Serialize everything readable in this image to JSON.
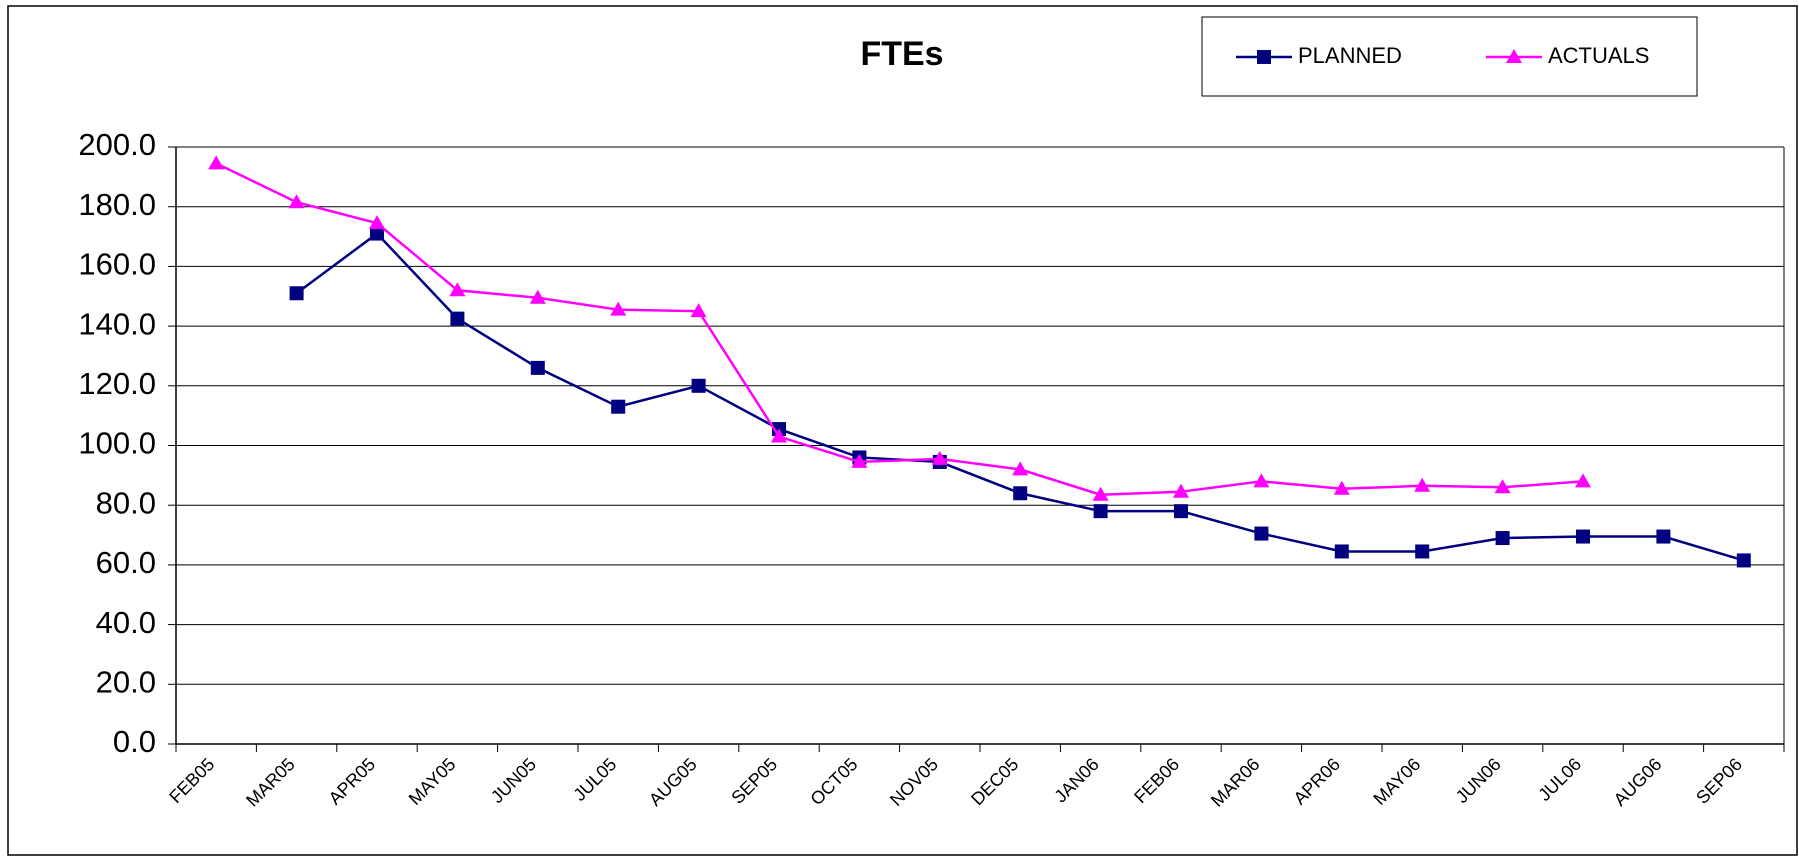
{
  "chart_data": {
    "type": "line",
    "title": "FTEs",
    "categories": [
      "FEB05",
      "MAR05",
      "APR05",
      "MAY05",
      "JUN05",
      "JUL05",
      "AUG05",
      "SEP05",
      "OCT05",
      "NOV05",
      "DEC05",
      "JAN06",
      "FEB06",
      "MAR06",
      "APR06",
      "MAY06",
      "JUN06",
      "JUL06",
      "AUG06",
      "SEP06"
    ],
    "series": [
      {
        "name": "PLANNED",
        "color": "#000080",
        "marker": "square",
        "values": [
          null,
          151,
          171,
          142.5,
          126,
          113,
          120,
          105.5,
          96,
          94.5,
          84,
          78,
          78,
          70.5,
          64.5,
          64.5,
          69,
          69.5,
          69.5,
          61.5
        ]
      },
      {
        "name": "ACTUALS",
        "color": "#ff00ff",
        "marker": "triangle",
        "values": [
          194.5,
          181.5,
          174.5,
          152,
          149.5,
          145.5,
          145,
          103,
          94.5,
          95.5,
          92,
          83.5,
          84.5,
          88,
          85.5,
          86.5,
          86,
          88,
          null,
          null
        ]
      }
    ],
    "ylim": [
      0,
      200
    ],
    "yticks": [
      {
        "value": 0,
        "label": "0.0"
      },
      {
        "value": 20,
        "label": "20.0"
      },
      {
        "value": 40,
        "label": "40.0"
      },
      {
        "value": 60,
        "label": "60.0"
      },
      {
        "value": 80,
        "label": "80.0"
      },
      {
        "value": 100,
        "label": "100.0"
      },
      {
        "value": 120,
        "label": "120.0"
      },
      {
        "value": 140,
        "label": "140.0"
      },
      {
        "value": 160,
        "label": "160.0"
      },
      {
        "value": 180,
        "label": "180.0"
      },
      {
        "value": 200,
        "label": "200.0"
      }
    ],
    "grid": true,
    "legend": "top-right"
  }
}
